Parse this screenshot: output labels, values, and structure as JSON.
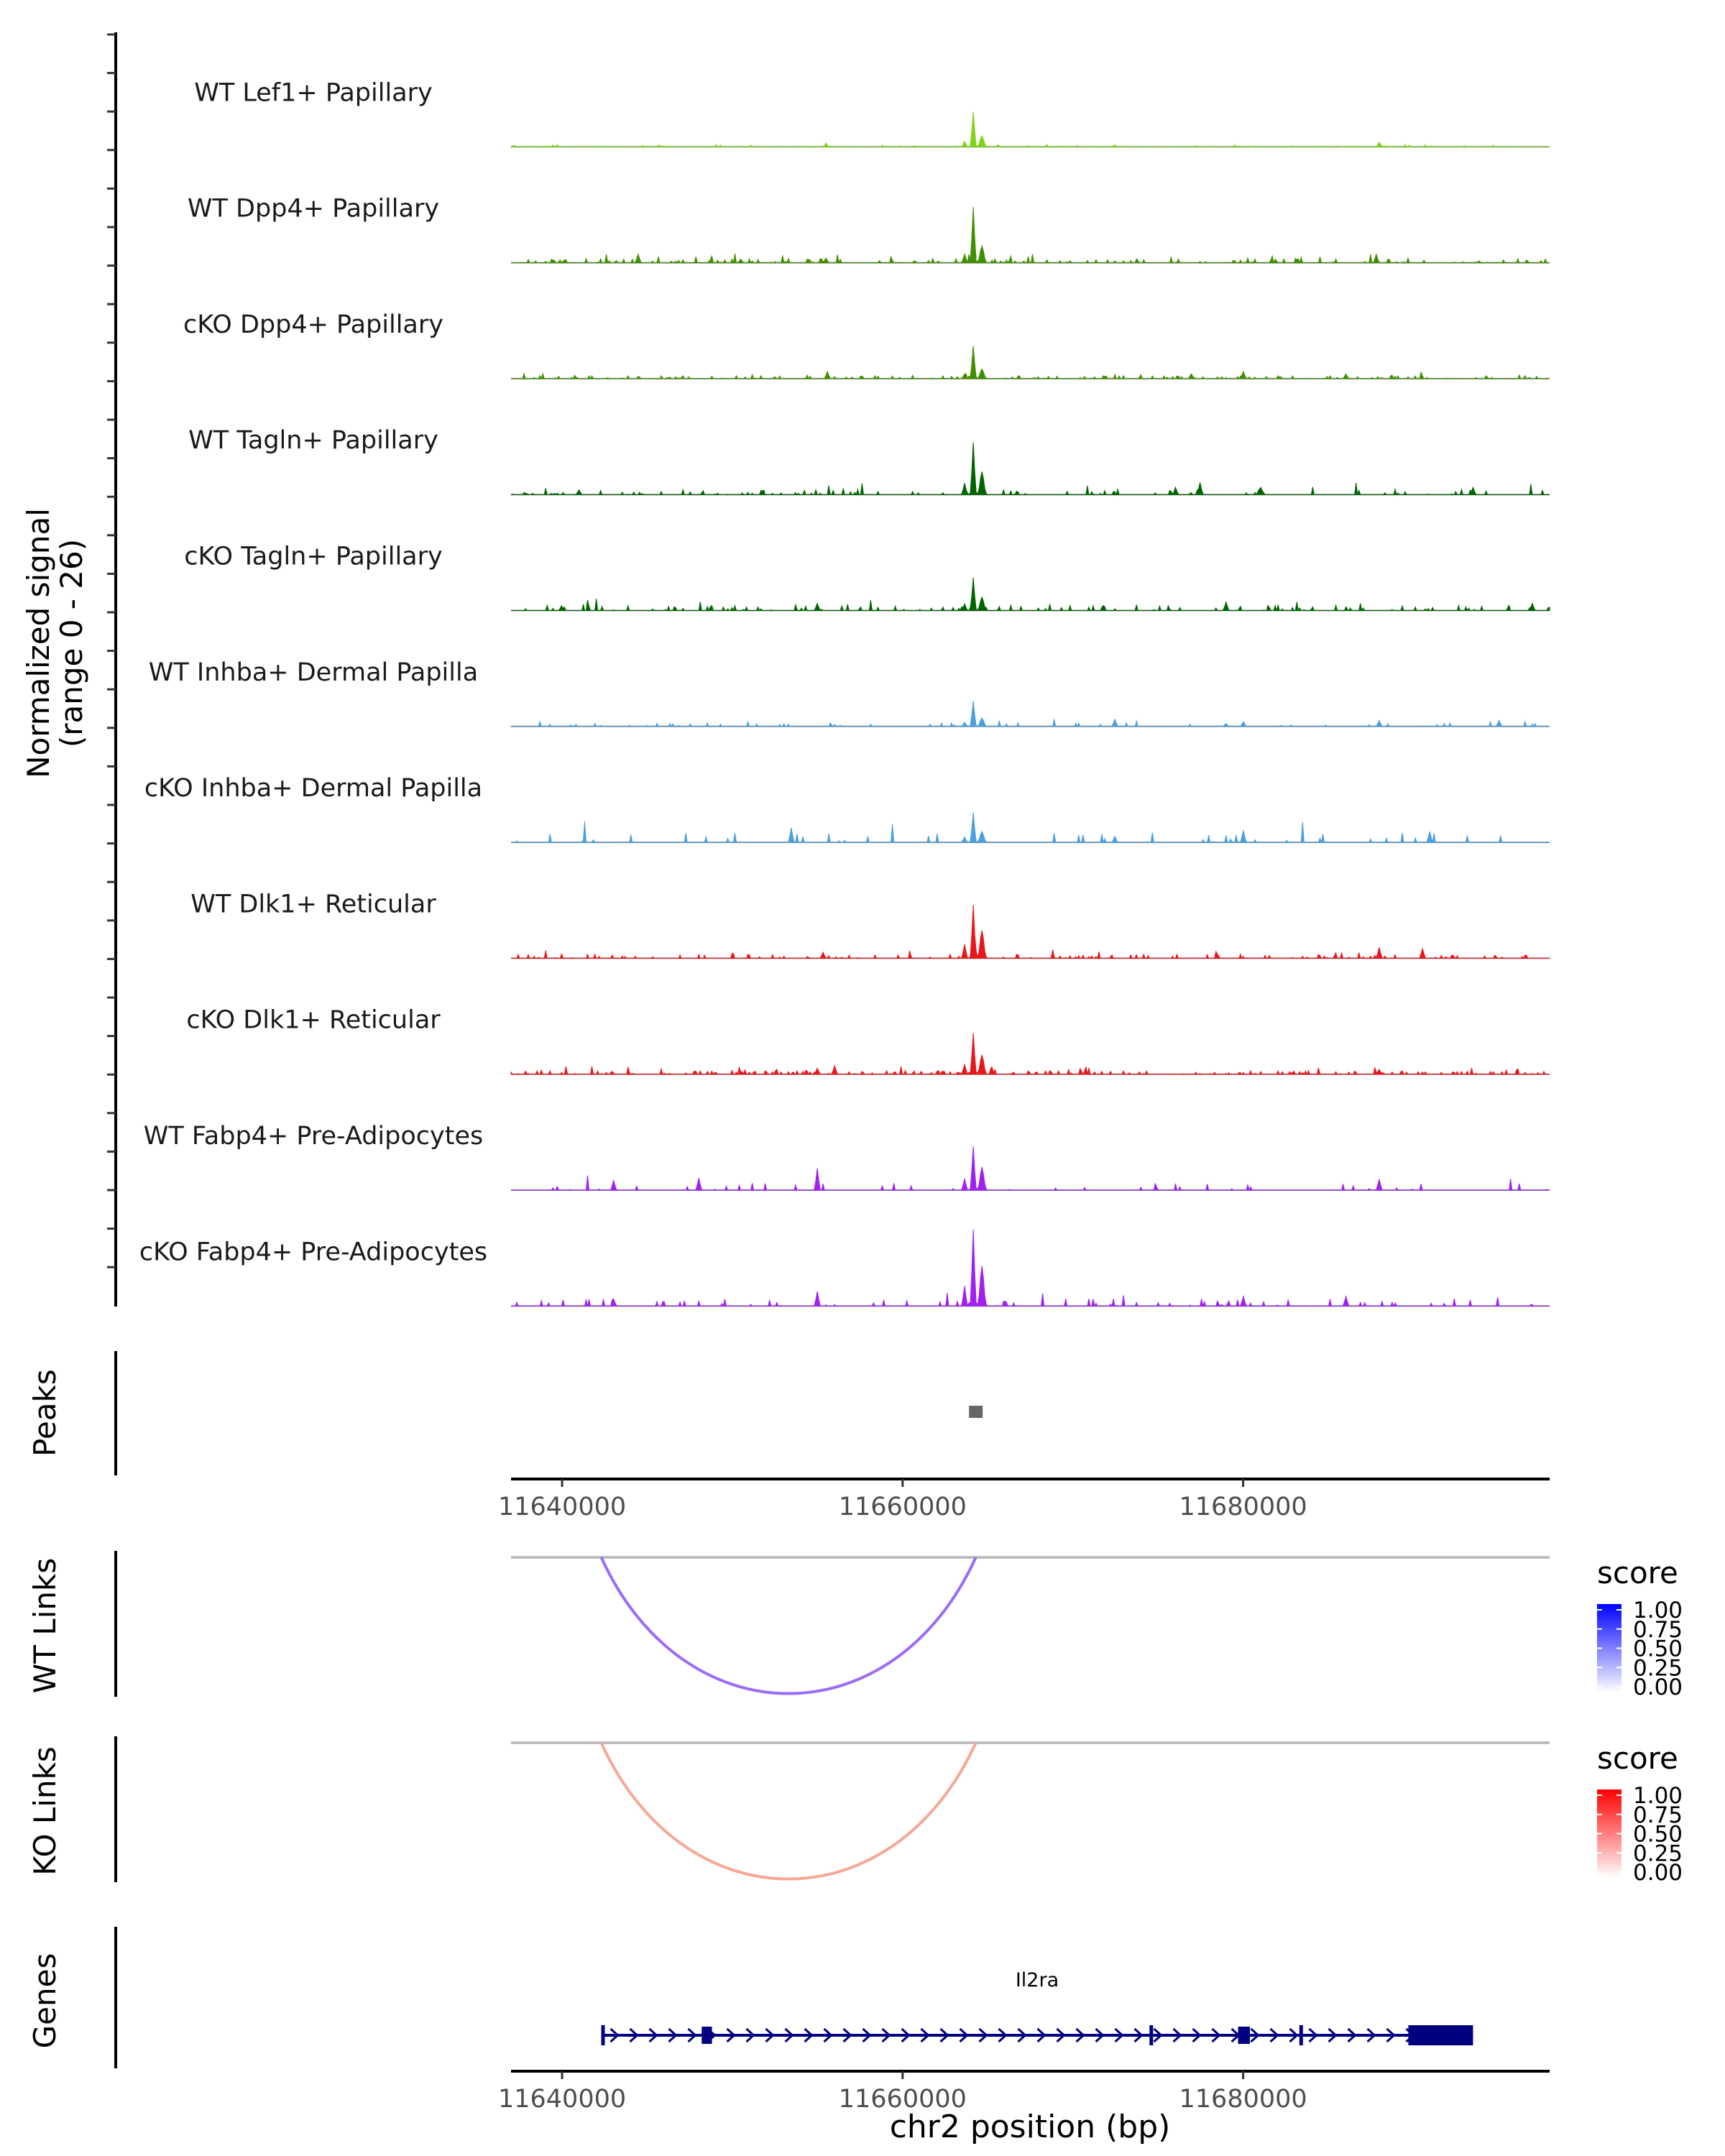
{
  "chart_data": {
    "type": "area",
    "title": "",
    "chromosome": "chr2",
    "region": [
      11637000,
      11698000
    ],
    "xlabel": "chr2 position (bp)",
    "x_ticks": [
      11640000,
      11660000,
      11680000
    ],
    "x_tick_labels": [
      "11640000",
      "11660000",
      "11680000"
    ],
    "coverage": {
      "ylabel": "Normalized signal",
      "ylabel_range": "(range 0 - 26)",
      "ylim": [
        0,
        26
      ],
      "main_peak_position": 11664300,
      "tracks": [
        {
          "name": "WT Lef1+ Papillary",
          "color": "#7FD41A",
          "peak_heights": [
            2.9,
            0.9
          ],
          "noise_level": 0.08,
          "noise_density": 0.9,
          "seed": 11,
          "extra_peaks": [
            [
              11655500,
              0.3
            ],
            [
              11688000,
              0.4
            ],
            [
              11672500,
              0.15
            ]
          ]
        },
        {
          "name": "WT Dpp4+ Papillary",
          "color": "#3F8F00",
          "peak_heights": [
            4.6,
            1.4
          ],
          "noise_level": 0.35,
          "noise_density": 0.55,
          "seed": 23,
          "extra_peaks": [
            [
              11644500,
              0.7
            ],
            [
              11650500,
              0.3
            ],
            [
              11655500,
              0.4
            ],
            [
              11687800,
              0.7
            ]
          ]
        },
        {
          "name": "cKO Dpp4+ Papillary",
          "color": "#3F8F00",
          "peak_heights": [
            2.7,
            0.8
          ],
          "noise_level": 0.25,
          "noise_density": 0.6,
          "seed": 37,
          "extra_peaks": [
            [
              11655600,
              0.6
            ],
            [
              11677000,
              0.4
            ],
            [
              11680000,
              0.6
            ],
            [
              11686000,
              0.4
            ]
          ]
        },
        {
          "name": "WT Tagln+ Papillary",
          "color": "#006400",
          "peak_heights": [
            4.3,
            1.9
          ],
          "noise_level": 0.45,
          "noise_density": 0.35,
          "seed": 53,
          "extra_peaks": [
            [
              11677500,
              1.0
            ],
            [
              11676000,
              0.6
            ],
            [
              11681000,
              0.6
            ],
            [
              11693500,
              0.6
            ],
            [
              11641000,
              0.4
            ]
          ]
        },
        {
          "name": "cKO Tagln+ Papillary",
          "color": "#006400",
          "peak_heights": [
            2.7,
            1.1
          ],
          "noise_level": 0.45,
          "noise_density": 0.5,
          "seed": 71,
          "extra_peaks": [
            [
              11655000,
              0.6
            ],
            [
              11640000,
              0.4
            ],
            [
              11679000,
              0.7
            ],
            [
              11697000,
              0.6
            ]
          ]
        },
        {
          "name": "WT Inhba+ Dermal Papilla",
          "color": "#4A9FE0",
          "peak_heights": [
            2.1,
            0.7
          ],
          "noise_level": 0.3,
          "noise_density": 0.3,
          "seed": 89,
          "extra_peaks": [
            [
              11672500,
              0.6
            ],
            [
              11680000,
              0.4
            ],
            [
              11688000,
              0.5
            ],
            [
              11695000,
              0.5
            ]
          ]
        },
        {
          "name": "cKO Inhba+ Dermal Papilla",
          "color": "#4A9FE0",
          "peak_heights": [
            2.5,
            0.9
          ],
          "noise_level": 0.85,
          "noise_density": 0.2,
          "seed": 97,
          "extra_peaks": [
            [
              11653500,
              1.2
            ],
            [
              11680000,
              1.0
            ],
            [
              11672500,
              0.5
            ],
            [
              11691000,
              0.9
            ]
          ]
        },
        {
          "name": "WT Dlk1+ Reticular",
          "color": "#E8171C",
          "peak_heights": [
            4.4,
            2.3
          ],
          "noise_level": 0.35,
          "noise_density": 0.55,
          "seed": 101,
          "extra_peaks": [
            [
              11688000,
              0.9
            ],
            [
              11690500,
              0.8
            ],
            [
              11655300,
              0.5
            ]
          ]
        },
        {
          "name": "cKO Dlk1+ Reticular",
          "color": "#E8171C",
          "peak_heights": [
            3.4,
            1.6
          ],
          "noise_level": 0.3,
          "noise_density": 0.8,
          "seed": 113,
          "extra_peaks": [
            [
              11656000,
              0.7
            ],
            [
              11655000,
              0.5
            ],
            [
              11688000,
              0.4
            ]
          ]
        },
        {
          "name": "WT Fabp4+ Pre-Adipocytes",
          "color": "#A020F0",
          "peak_heights": [
            3.6,
            1.9
          ],
          "noise_level": 0.6,
          "noise_density": 0.15,
          "seed": 131,
          "extra_peaks": [
            [
              11655000,
              1.8
            ],
            [
              11648000,
              1.0
            ],
            [
              11643000,
              0.8
            ],
            [
              11688000,
              0.9
            ]
          ]
        },
        {
          "name": "cKO Fabp4+ Pre-Adipocytes",
          "color": "#A020F0",
          "peak_heights": [
            6.3,
            3.3
          ],
          "noise_level": 0.6,
          "noise_density": 0.3,
          "seed": 151,
          "extra_peaks": [
            [
              11655000,
              1.2
            ],
            [
              11686000,
              0.8
            ],
            [
              11680000,
              0.8
            ],
            [
              11643000,
              0.6
            ]
          ]
        }
      ]
    },
    "peaks": {
      "label": "Peaks",
      "regions": [
        [
          11663900,
          11664700
        ]
      ],
      "color": "#666666"
    },
    "links": [
      {
        "label": "WT Links",
        "start": 11642300,
        "end": 11664300,
        "score": 0.55,
        "color": "#9B6BFA",
        "legend": {
          "title": "score",
          "ticks": [
            "1.00",
            "0.75",
            "0.50",
            "0.25",
            "0.00"
          ],
          "low": "#FFFFFF",
          "high": "#0000FF"
        }
      },
      {
        "label": "KO Links",
        "start": 11642300,
        "end": 11664300,
        "score": 0.4,
        "color": "#F6A894",
        "legend": {
          "title": "score",
          "ticks": [
            "1.00",
            "0.75",
            "0.50",
            "0.25",
            "0.00"
          ],
          "low": "#FFFFFF",
          "high": "#FF0000"
        }
      }
    ],
    "genes": {
      "label": "Genes",
      "color": "#000080",
      "items": [
        {
          "name": "Il2ra",
          "start": 11642300,
          "end": 11693500,
          "strand": "+",
          "exons": [
            [
              11642300,
              11642400
            ],
            [
              11648200,
              11648800
            ],
            [
              11674500,
              11674650
            ],
            [
              11679700,
              11680400
            ],
            [
              11683300,
              11683400
            ],
            [
              11689700,
              11693500
            ]
          ]
        }
      ]
    }
  }
}
